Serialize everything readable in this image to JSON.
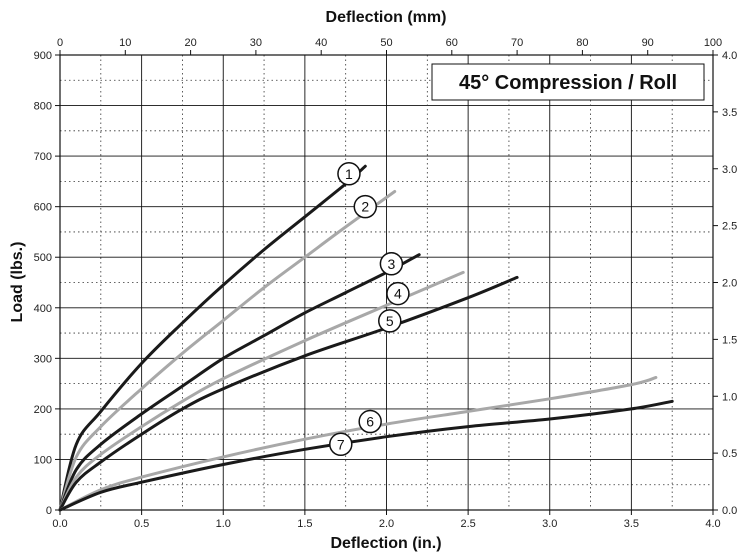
{
  "chart_data": {
    "type": "line",
    "title": "45° Compression / Roll",
    "xlabel_bottom": "Deflection (in.)",
    "xlabel_top": "Deflection (mm)",
    "ylabel_left": "Load (lbs.)",
    "xlim_in": [
      0,
      4
    ],
    "xlim_mm": [
      0,
      100
    ],
    "ylim_left": [
      0,
      900
    ],
    "ylim_right": [
      0,
      4.0
    ],
    "grid": true,
    "x_ticks_bottom": [
      "0.0",
      "0.5",
      "1.0",
      "1.5",
      "2.0",
      "2.5",
      "3.0",
      "3.5",
      "4.0"
    ],
    "x_ticks_top": [
      "0",
      "10",
      "20",
      "30",
      "40",
      "50",
      "60",
      "70",
      "80",
      "90",
      "100"
    ],
    "y_ticks_left": [
      "0",
      "100",
      "200",
      "300",
      "400",
      "500",
      "600",
      "700",
      "800",
      "900"
    ],
    "y_ticks_right": [
      "0.0",
      "0.5",
      "1.0",
      "1.5",
      "2.0",
      "2.5",
      "3.0",
      "3.5",
      "4.0"
    ],
    "series": [
      {
        "label": "1",
        "color": "#1a1a1a",
        "x": [
          0,
          0.1,
          0.25,
          0.5,
          0.75,
          1.0,
          1.25,
          1.5,
          1.75,
          1.87
        ],
        "y": [
          0,
          130,
          195,
          290,
          370,
          445,
          515,
          580,
          645,
          680
        ]
      },
      {
        "label": "2",
        "color": "#a8a8a8",
        "x": [
          0,
          0.1,
          0.25,
          0.5,
          0.75,
          1.0,
          1.25,
          1.5,
          1.75,
          2.05
        ],
        "y": [
          0,
          105,
          165,
          240,
          310,
          375,
          440,
          500,
          560,
          630
        ]
      },
      {
        "label": "3",
        "color": "#1a1a1a",
        "x": [
          0,
          0.1,
          0.25,
          0.5,
          0.75,
          1.0,
          1.25,
          1.5,
          1.75,
          2.0,
          2.2
        ],
        "y": [
          0,
          80,
          130,
          190,
          245,
          300,
          345,
          390,
          430,
          470,
          505
        ]
      },
      {
        "label": "4",
        "color": "#a8a8a8",
        "x": [
          0,
          0.1,
          0.25,
          0.5,
          0.75,
          1.0,
          1.5,
          2.0,
          2.47
        ],
        "y": [
          0,
          65,
          110,
          165,
          215,
          260,
          335,
          405,
          470
        ]
      },
      {
        "label": "5",
        "color": "#1a1a1a",
        "x": [
          0,
          0.1,
          0.25,
          0.5,
          0.75,
          1.0,
          1.5,
          2.0,
          2.5,
          2.8
        ],
        "y": [
          0,
          55,
          95,
          150,
          200,
          240,
          305,
          360,
          420,
          460
        ]
      },
      {
        "label": "6",
        "color": "#a8a8a8",
        "x": [
          0,
          0.25,
          0.5,
          1.0,
          1.5,
          2.0,
          2.5,
          3.0,
          3.5,
          3.65
        ],
        "y": [
          0,
          40,
          65,
          105,
          140,
          170,
          195,
          220,
          248,
          262
        ]
      },
      {
        "label": "7",
        "color": "#1a1a1a",
        "x": [
          0,
          0.25,
          0.5,
          1.0,
          1.5,
          2.0,
          2.5,
          3.0,
          3.5,
          3.75
        ],
        "y": [
          0,
          35,
          55,
          90,
          120,
          145,
          165,
          180,
          200,
          215
        ]
      }
    ]
  }
}
